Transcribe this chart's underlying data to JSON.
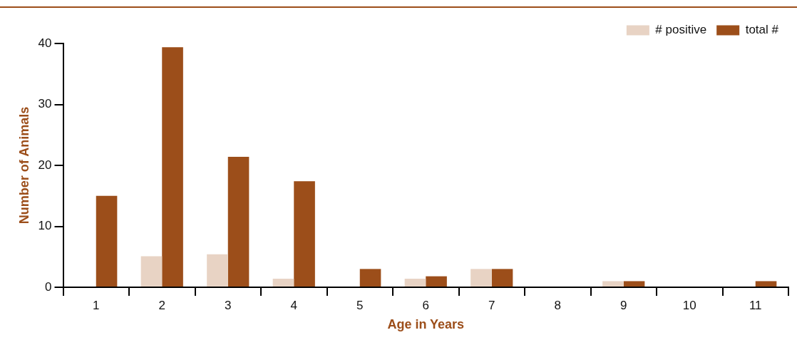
{
  "chart_data": {
    "type": "bar",
    "xlabel": "Age in Years",
    "ylabel": "Number of Animals",
    "categories": [
      "1",
      "2",
      "3",
      "4",
      "5",
      "6",
      "7",
      "8",
      "9",
      "10",
      "11"
    ],
    "series": [
      {
        "name": "# positive",
        "color": "#e8d3c4",
        "values": [
          0,
          5.1,
          5.4,
          1.4,
          0,
          1.4,
          3,
          0,
          1,
          0,
          0
        ]
      },
      {
        "name": "total #",
        "color": "#9c4e1a",
        "values": [
          15,
          39.4,
          21.4,
          17.4,
          3,
          1.8,
          3,
          0,
          1,
          0,
          1
        ]
      }
    ],
    "ylim": [
      0,
      40
    ],
    "yticks": [
      0,
      10,
      20,
      30,
      40
    ],
    "legend": "top right"
  }
}
